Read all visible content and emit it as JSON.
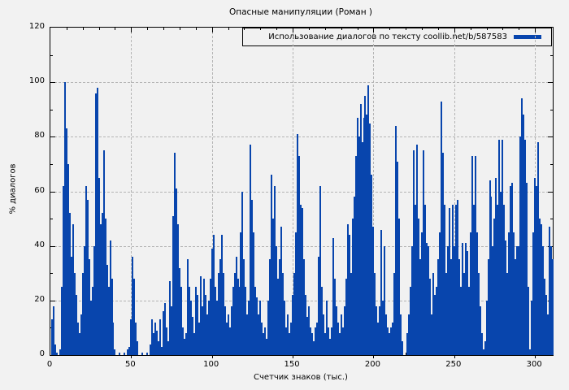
{
  "title": "Опасные манипуляции (Роман )",
  "legend": {
    "label": "Использование диалогов по тексту coollib.net/b/587583"
  },
  "axes": {
    "x_label": "Счетчик знаков (тыс.)",
    "y_label": "% диалогов",
    "x_ticks": [
      0,
      50,
      100,
      150,
      200,
      250,
      300
    ],
    "y_ticks": [
      0,
      20,
      40,
      60,
      80,
      100,
      120
    ],
    "x_minor_step": 10,
    "y_minor_step": 10
  },
  "colors": {
    "bar": "#0845ad",
    "grid": "#b4b4b4",
    "axis": "#000000",
    "background": "#f2f2f2",
    "text": "#000000"
  },
  "chart_data": {
    "type": "bar",
    "style": "impulses",
    "title": "Опасные манипуляции (Роман )",
    "xlabel": "Счетчик знаков (тыс.)",
    "ylabel": "% диалогов",
    "legend_entry": "Использование диалогов по тексту coollib.net/b/587583",
    "grid": true,
    "legend_position": "top-right",
    "x_range": [
      0,
      311
    ],
    "y_range": [
      0,
      120
    ],
    "x_step": 1,
    "values": [
      0,
      13,
      18,
      4,
      1,
      0,
      2,
      25,
      62,
      100,
      83,
      70,
      52,
      36,
      48,
      30,
      22,
      12,
      8,
      15,
      30,
      40,
      62,
      57,
      35,
      20,
      25,
      40,
      96,
      98,
      65,
      48,
      52,
      75,
      50,
      33,
      25,
      42,
      28,
      12,
      2,
      0,
      0,
      1,
      0,
      0,
      1,
      0,
      2,
      3,
      13,
      36,
      28,
      12,
      5,
      0,
      0,
      1,
      0,
      0,
      1,
      0,
      4,
      13,
      8,
      12,
      9,
      5,
      13,
      3,
      16,
      19,
      10,
      5,
      27,
      18,
      51,
      74,
      61,
      48,
      32,
      25,
      10,
      6,
      8,
      35,
      25,
      20,
      14,
      8,
      25,
      22,
      12,
      29,
      18,
      28,
      22,
      15,
      20,
      28,
      39,
      44,
      25,
      20,
      30,
      35,
      44,
      30,
      18,
      12,
      15,
      10,
      18,
      25,
      30,
      36,
      28,
      25,
      45,
      60,
      35,
      25,
      15,
      20,
      77,
      57,
      45,
      25,
      21,
      15,
      20,
      12,
      8,
      10,
      6,
      20,
      35,
      66,
      50,
      62,
      40,
      28,
      35,
      47,
      30,
      20,
      10,
      15,
      8,
      12,
      22,
      30,
      45,
      81,
      73,
      55,
      54,
      35,
      22,
      14,
      18,
      10,
      8,
      5,
      10,
      12,
      36,
      62,
      25,
      15,
      8,
      20,
      10,
      6,
      10,
      43,
      28,
      18,
      12,
      8,
      15,
      10,
      18,
      28,
      48,
      44,
      30,
      50,
      58,
      73,
      87,
      80,
      92,
      78,
      87,
      95,
      88,
      99,
      85,
      66,
      47,
      30,
      18,
      12,
      18,
      46,
      20,
      40,
      15,
      10,
      8,
      10,
      12,
      30,
      84,
      71,
      50,
      15,
      5,
      0,
      0,
      8,
      15,
      25,
      40,
      75,
      55,
      77,
      50,
      35,
      45,
      75,
      55,
      41,
      40,
      28,
      15,
      30,
      22,
      25,
      35,
      45,
      93,
      74,
      55,
      30,
      40,
      54,
      35,
      55,
      40,
      55,
      57,
      35,
      25,
      41,
      30,
      41,
      38,
      25,
      45,
      73,
      55,
      73,
      45,
      30,
      18,
      8,
      2,
      5,
      20,
      35,
      64,
      58,
      40,
      50,
      65,
      55,
      79,
      60,
      79,
      55,
      42,
      30,
      45,
      62,
      63,
      45,
      35,
      40,
      40,
      80,
      94,
      88,
      79,
      63,
      25,
      2,
      20,
      45,
      65,
      62,
      78,
      50,
      48,
      40,
      28,
      22,
      15,
      47,
      40,
      35
    ]
  }
}
